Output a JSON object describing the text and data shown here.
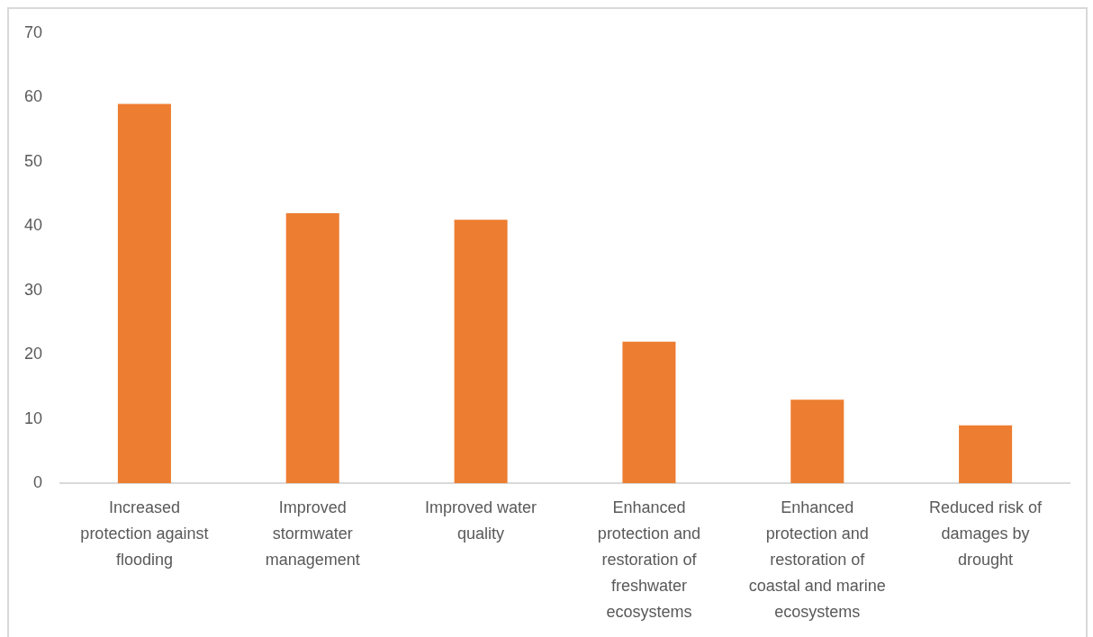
{
  "chart_data": {
    "type": "bar",
    "categories": [
      "Increased protection against flooding",
      "Improved stormwater management",
      "Improved water quality",
      "Enhanced protection and restoration of freshwater ecosystems",
      "Enhanced protection and restoration of coastal and marine ecosystems",
      "Reduced risk of damages by drought"
    ],
    "values": [
      59,
      42,
      41,
      22,
      13,
      9
    ],
    "color": "#ed7d31",
    "ylim": [
      0,
      70
    ],
    "yticks": [
      0,
      10,
      20,
      30,
      40,
      50,
      60,
      70
    ],
    "grid": false,
    "legend": false
  }
}
